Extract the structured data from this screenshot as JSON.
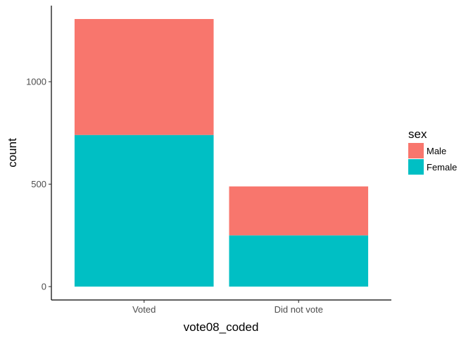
{
  "chart_data": {
    "type": "bar",
    "stacked": true,
    "categories": [
      "Voted",
      "Did not vote"
    ],
    "series": [
      {
        "name": "Male",
        "values": [
          566,
          239
        ],
        "color": "#F8766D"
      },
      {
        "name": "Female",
        "values": [
          740,
          250
        ],
        "color": "#00BFC4"
      }
    ],
    "xlabel": "vote08_coded",
    "ylabel": "count",
    "yticks": [
      0,
      500,
      1000
    ],
    "ylim": [
      -65.3,
      1371.3
    ],
    "legend": {
      "title": "sex",
      "position": "right",
      "order": [
        "Male",
        "Female"
      ]
    },
    "grid": false
  }
}
